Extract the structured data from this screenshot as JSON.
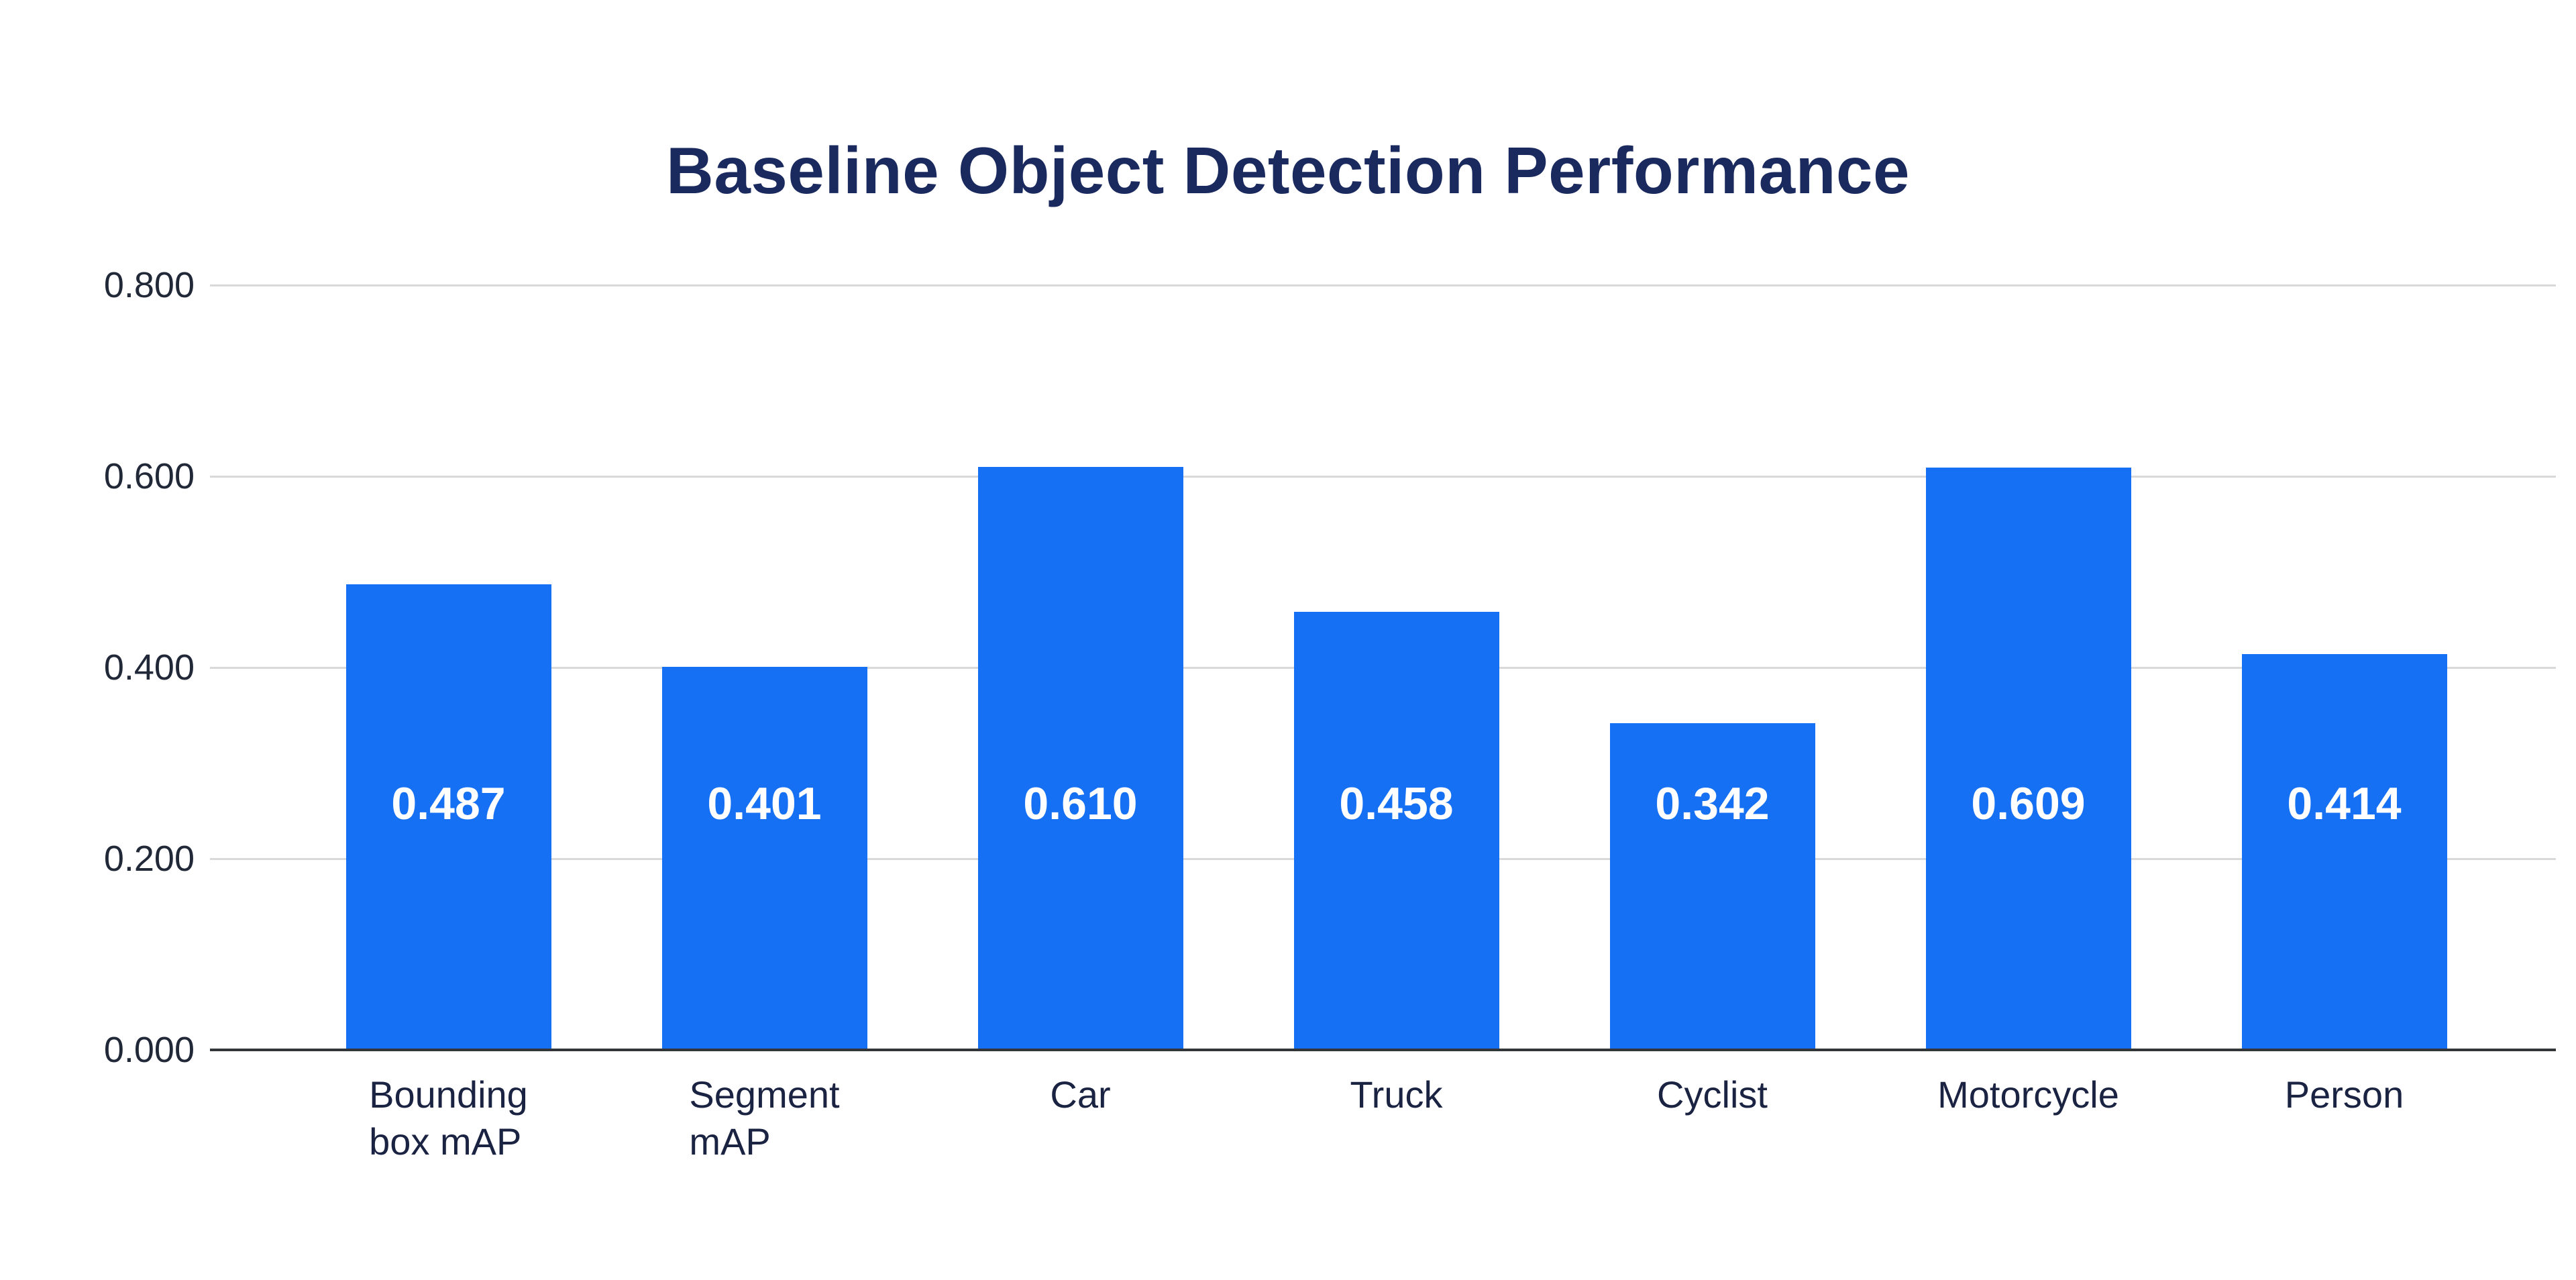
{
  "chart_data": {
    "type": "bar",
    "title": "Baseline Object Detection Performance",
    "categories": [
      "Bounding box mAP",
      "Segment mAP",
      "Car",
      "Truck",
      "Cyclist",
      "Motorcycle",
      "Person"
    ],
    "category_lines": [
      [
        "Bounding",
        "box mAP"
      ],
      [
        "Segment",
        "mAP"
      ],
      [
        "Car"
      ],
      [
        "Truck"
      ],
      [
        "Cyclist"
      ],
      [
        "Motorcycle"
      ],
      [
        "Person"
      ]
    ],
    "values": [
      0.487,
      0.401,
      0.61,
      0.458,
      0.342,
      0.609,
      0.414
    ],
    "value_labels": [
      "0.487",
      "0.401",
      "0.610",
      "0.458",
      "0.342",
      "0.609",
      "0.414"
    ],
    "y_axis": {
      "min": 0,
      "max": 0.8,
      "ticks": [
        {
          "label": "0.800",
          "value": 0.8
        },
        {
          "label": "0.600",
          "value": 0.6
        },
        {
          "label": "0.400",
          "value": 0.4
        },
        {
          "label": "0.200",
          "value": 0.2
        },
        {
          "label": "0.000",
          "value": 0.0
        }
      ]
    },
    "grid": true,
    "legend": false,
    "xlabel": "",
    "ylabel": "",
    "colors": {
      "bar": "#1570F3",
      "title": "#1A2A5E",
      "tick_label": "#212838",
      "category_label": "#1B2342",
      "value_label": "#FFFFFF",
      "gridline": "#D9D9D9",
      "axis_line": "#333638",
      "background": "#FFFFFF"
    }
  }
}
